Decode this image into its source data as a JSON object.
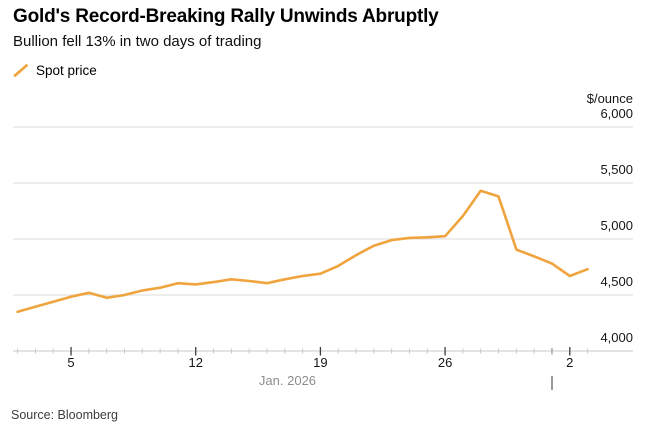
{
  "header": {
    "title": "Gold's Record-Breaking Rally Unwinds Abruptly",
    "subtitle": "Bullion fell 13% in two days of trading"
  },
  "legend": {
    "label": "Spot price",
    "mark": "diagonal-line",
    "color": "#F0A43E"
  },
  "source": "Source: Bloomberg",
  "colors": {
    "line": "#F0A43E",
    "grid": "#DBDBDB",
    "axis": "#C9C9C9",
    "major_tick": "#3D3D3D",
    "month_tick": "#9A9A9A",
    "minor_tick": "#C8C8C8",
    "muted_text": "#8D8D8D",
    "text": "#161616"
  },
  "chart_data": {
    "type": "line",
    "title": "Gold's Record-Breaking Rally Unwinds Abruptly",
    "subtitle": "Bullion fell 13% in two days of trading",
    "ylabel": "$/ounce",
    "xlabel": "Jan. 2026",
    "ylim": [
      4000,
      6000
    ],
    "grid": "horizontal",
    "legend_position": "top-left",
    "x": [
      "Jan 2",
      "Jan 3",
      "Jan 4",
      "Jan 5",
      "Jan 6",
      "Jan 7",
      "Jan 8",
      "Jan 9",
      "Jan 10",
      "Jan 11",
      "Jan 12",
      "Jan 13",
      "Jan 14",
      "Jan 15",
      "Jan 16",
      "Jan 17",
      "Jan 18",
      "Jan 19",
      "Jan 20",
      "Jan 21",
      "Jan 22",
      "Jan 23",
      "Jan 24",
      "Jan 25",
      "Jan 26",
      "Jan 27",
      "Jan 28",
      "Jan 29",
      "Jan 30",
      "Jan 31",
      "Feb 1",
      "Feb 2",
      "Feb 3"
    ],
    "series": [
      {
        "name": "Spot price",
        "color": "#F0A43E",
        "values": [
          4350,
          4395,
          4440,
          4485,
          4520,
          4475,
          4500,
          4540,
          4565,
          4605,
          4595,
          4615,
          4640,
          4625,
          4605,
          4640,
          4670,
          4690,
          4760,
          4855,
          4940,
          4990,
          5010,
          5015,
          5025,
          5205,
          5430,
          5380,
          4905,
          4845,
          4780,
          4670,
          4730
        ]
      }
    ],
    "yticks": [
      {
        "value": 4000,
        "label": "4,000"
      },
      {
        "value": 4500,
        "label": "4,500"
      },
      {
        "value": 5000,
        "label": "5,000"
      },
      {
        "value": 5500,
        "label": "5,500"
      },
      {
        "value": 6000,
        "label": "6,000"
      }
    ],
    "xticks": [
      {
        "index": 3,
        "label": "5"
      },
      {
        "index": 10,
        "label": "12"
      },
      {
        "index": 17,
        "label": "19"
      },
      {
        "index": 24,
        "label": "26"
      },
      {
        "index": 31,
        "label": "2"
      }
    ],
    "month_label": "Jan. 2026",
    "month_boundary_index": 30
  }
}
